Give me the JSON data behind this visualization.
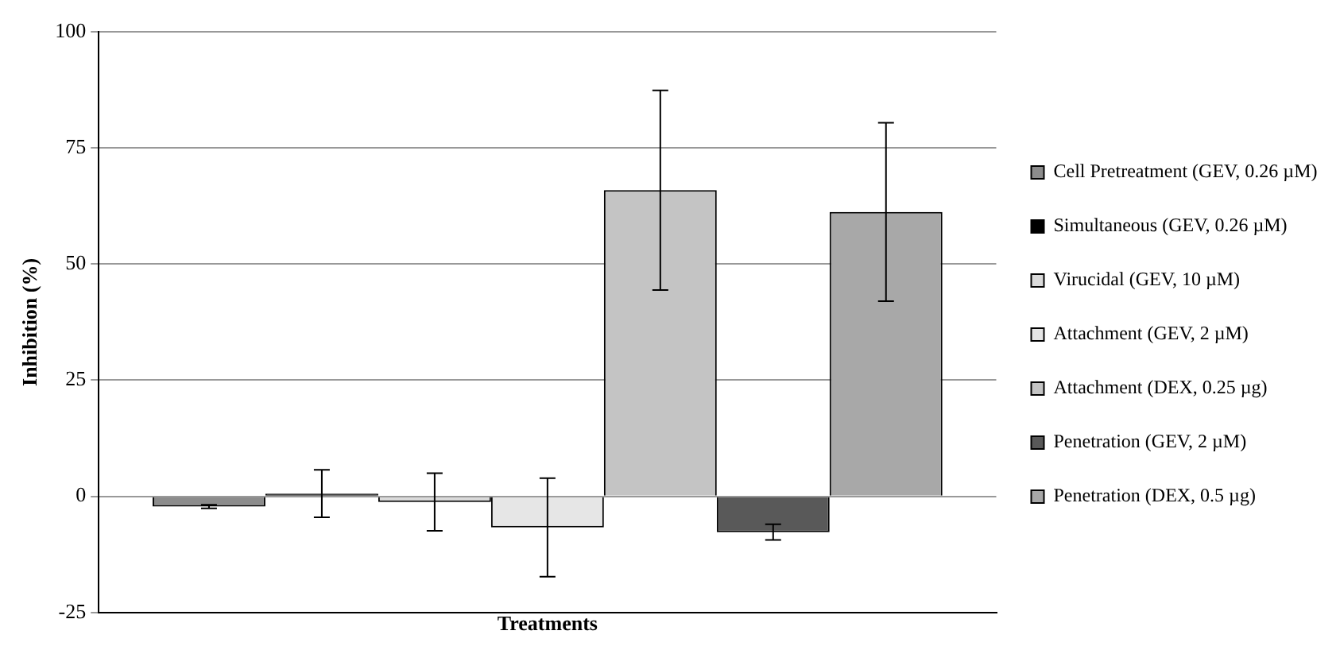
{
  "chart_data": {
    "type": "bar",
    "xlabel": "Treatments",
    "ylabel": "Inhibition (%)",
    "categories": [
      null
    ],
    "series": [
      {
        "name": "Cell Pretreatment (GEV, 0.26 µM)",
        "color": "#8c8c8c",
        "values": [
          -2.2
        ],
        "errors": [
          0.4
        ]
      },
      {
        "name": "Simultaneous (GEV, 0.26 µM)",
        "color": "#000000",
        "values": [
          0.6
        ],
        "errors": [
          5.1
        ]
      },
      {
        "name": "Virucidal (GEV, 10 µM)",
        "color": "#dadada",
        "values": [
          -1.2
        ],
        "errors": [
          6.2
        ]
      },
      {
        "name": "Attachment (GEV, 2 µM)",
        "color": "#e6e6e6",
        "values": [
          -6.7
        ],
        "errors": [
          10.6
        ]
      },
      {
        "name": "Attachment (DEX, 0.25 µg)",
        "color": "#c4c4c4",
        "values": [
          65.9
        ],
        "errors": [
          21.5
        ]
      },
      {
        "name": "Penetration (GEV, 2 µM)",
        "color": "#595959",
        "values": [
          -7.7
        ],
        "errors": [
          1.7
        ]
      },
      {
        "name": "Penetration (DEX, 0.5 µg)",
        "color": "#a8a8a8",
        "values": [
          61.2
        ],
        "errors": [
          19.2
        ]
      }
    ],
    "ylim": [
      -25,
      100
    ],
    "yticks": [
      -25,
      0,
      25,
      50,
      75,
      100
    ],
    "grid": "y",
    "legend": "right",
    "tick_labels": "y"
  }
}
